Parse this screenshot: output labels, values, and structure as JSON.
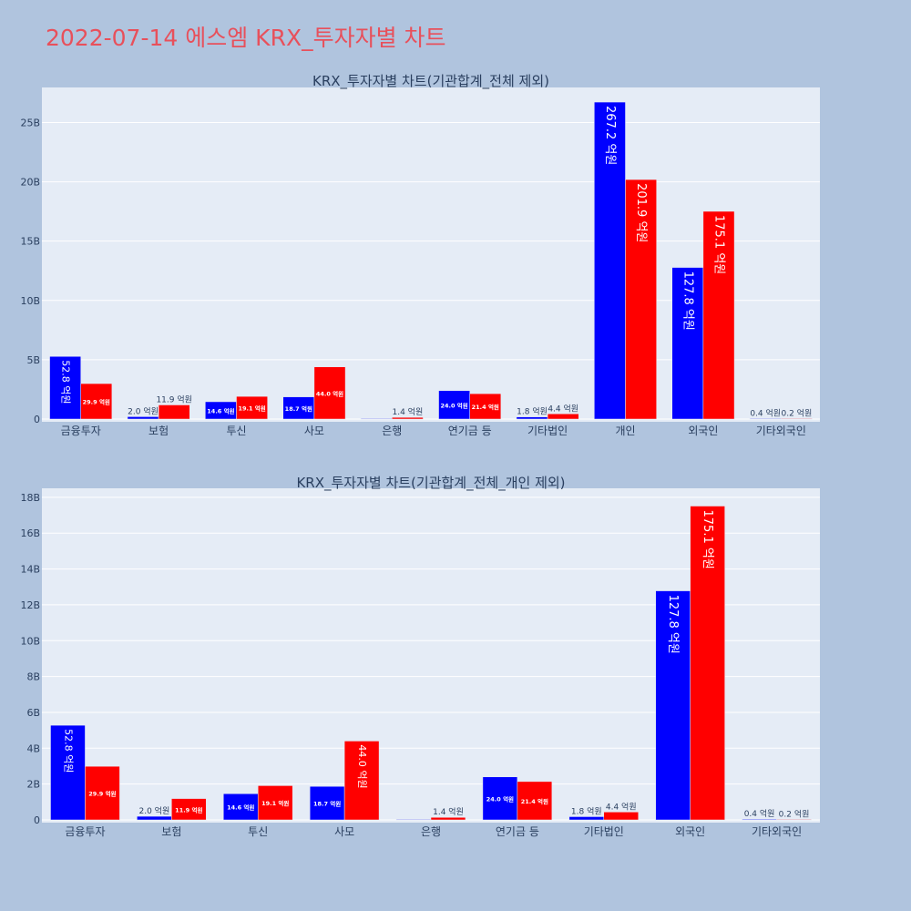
{
  "page": {
    "title": "2022-07-14 에스엠 KRX_투자자별 차트"
  },
  "colors": {
    "background": "#b0c4de",
    "plot_bg": "#e5ecf6",
    "series_a": "#0000ff",
    "series_b": "#ff0000",
    "title": "#e8505b"
  },
  "chart_data": [
    {
      "type": "bar",
      "title": "KRX_투자자별 차트(기관합계_전체 제외)",
      "xlabel": "",
      "ylabel": "",
      "categories": [
        "금융투자",
        "보험",
        "투신",
        "사모",
        "은행",
        "연기금 등",
        "기타법인",
        "개인",
        "외국인",
        "기타외국인"
      ],
      "series": [
        {
          "values": [
            5.28,
            0.2,
            1.46,
            1.87,
            0.0,
            2.4,
            0.18,
            26.72,
            12.78,
            0.04
          ],
          "labels": [
            "52.8 억원",
            "2.0 억원",
            "14.6 억원",
            "18.7 억원",
            "",
            "24.0 억원",
            "1.8 억원",
            "267.2 억원",
            "127.8 억원",
            "0.4 억원"
          ]
        },
        {
          "values": [
            2.99,
            1.19,
            1.91,
            4.4,
            0.14,
            2.14,
            0.44,
            20.19,
            17.51,
            0.02
          ],
          "labels": [
            "29.9 억원",
            "11.9 억원",
            "19.1 억원",
            "44.0 억원",
            "1.4 억원",
            "21.4 억원",
            "4.4 억원",
            "201.9 억원",
            "175.1 억원",
            "0.2 억원"
          ]
        }
      ],
      "yticks": [
        0,
        5,
        10,
        15,
        20,
        25
      ],
      "ytick_labels": [
        "0",
        "5B",
        "10B",
        "15B",
        "20B",
        "25B"
      ],
      "ylim": [
        0,
        27.8
      ],
      "grid": true
    },
    {
      "type": "bar",
      "title": "KRX_투자자별 차트(기관합계_전체_개인 제외)",
      "xlabel": "",
      "ylabel": "",
      "categories": [
        "금융투자",
        "보험",
        "투신",
        "사모",
        "은행",
        "연기금 등",
        "기타법인",
        "외국인",
        "기타외국인"
      ],
      "series": [
        {
          "values": [
            5.28,
            0.2,
            1.46,
            1.87,
            0.0,
            2.4,
            0.18,
            12.78,
            0.04
          ],
          "labels": [
            "52.8 억원",
            "2.0 억원",
            "14.6 억원",
            "18.7 억원",
            "",
            "24.0 억원",
            "1.8 억원",
            "127.8 억원",
            "0.4 억원"
          ]
        },
        {
          "values": [
            2.99,
            1.19,
            1.91,
            4.4,
            0.14,
            2.14,
            0.44,
            17.51,
            0.02
          ],
          "labels": [
            "29.9 억원",
            "11.9 억원",
            "19.1 억원",
            "44.0 억원",
            "1.4 억원",
            "21.4 억원",
            "4.4 억원",
            "175.1 억원",
            "0.2 억원"
          ]
        }
      ],
      "yticks": [
        0,
        2,
        4,
        6,
        8,
        10,
        12,
        14,
        16,
        18
      ],
      "ytick_labels": [
        "0",
        "2B",
        "4B",
        "6B",
        "8B",
        "10B",
        "12B",
        "14B",
        "16B",
        "18B"
      ],
      "ylim": [
        0,
        18.4
      ],
      "grid": true
    }
  ]
}
